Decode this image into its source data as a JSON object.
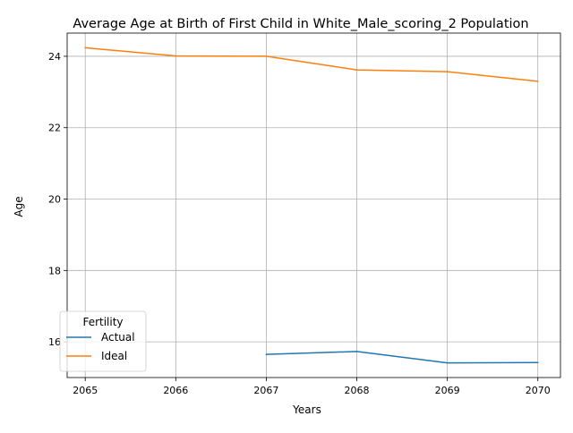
{
  "chart_data": {
    "type": "line",
    "title": "Average Age at Birth of First Child in White_Male_scoring_2 Population",
    "xlabel": "Years",
    "ylabel": "Age",
    "xlim": [
      2064.8,
      2070.25
    ],
    "ylim": [
      15.0,
      24.65
    ],
    "x_ticks": [
      2065,
      2066,
      2067,
      2068,
      2069,
      2070
    ],
    "y_ticks": [
      16,
      18,
      20,
      22,
      24
    ],
    "grid": true,
    "legend": {
      "title": "Fertility",
      "placement": "lower-left"
    },
    "series": [
      {
        "name": "Actual",
        "color": "#1f77b4",
        "points": [
          [
            2067,
            15.65
          ],
          [
            2068,
            15.73
          ],
          [
            2069,
            15.41
          ],
          [
            2070,
            15.42
          ]
        ]
      },
      {
        "name": "Ideal",
        "color": "#ff7f0e",
        "points": [
          [
            2065,
            24.24
          ],
          [
            2066,
            24.01
          ],
          [
            2067,
            24.0
          ],
          [
            2068,
            23.62
          ],
          [
            2069,
            23.57
          ],
          [
            2070,
            23.3
          ]
        ]
      }
    ]
  }
}
